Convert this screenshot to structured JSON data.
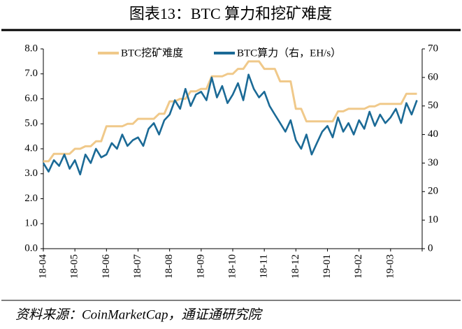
{
  "chart_data": {
    "type": "line",
    "title": "图表13：BTC 算力和挖矿难度",
    "source": "资料来源：CoinMarketCap，通证通研究院",
    "categories": [
      "18-04",
      null,
      null,
      null,
      null,
      null,
      "18-05",
      null,
      null,
      null,
      null,
      null,
      "18-06",
      null,
      null,
      null,
      null,
      null,
      "18-07",
      null,
      null,
      null,
      null,
      null,
      "18-08",
      null,
      null,
      null,
      null,
      null,
      "18-09",
      null,
      null,
      null,
      null,
      null,
      "18-10",
      null,
      null,
      null,
      null,
      null,
      "18-11",
      null,
      null,
      null,
      null,
      null,
      "18-12",
      null,
      null,
      null,
      null,
      null,
      "19-01",
      null,
      null,
      null,
      null,
      null,
      "19-02",
      null,
      null,
      null,
      null,
      null,
      "19-03",
      null,
      null,
      null,
      null,
      null
    ],
    "series": [
      {
        "name": "BTC挖矿难度",
        "color": "#f0c98a",
        "values": [
          3.5,
          3.5,
          3.8,
          3.8,
          3.8,
          3.8,
          4.0,
          4.0,
          4.1,
          4.1,
          4.3,
          4.3,
          4.9,
          4.9,
          4.9,
          4.9,
          5.0,
          5.0,
          5.2,
          5.2,
          5.2,
          5.2,
          5.4,
          5.4,
          5.9,
          5.9,
          6.0,
          6.0,
          6.3,
          6.3,
          6.4,
          6.4,
          6.9,
          6.9,
          6.9,
          7.0,
          7.0,
          7.2,
          7.2,
          7.5,
          7.5,
          7.5,
          7.2,
          7.2,
          7.2,
          6.7,
          6.7,
          6.7,
          5.6,
          5.6,
          5.1,
          5.1,
          5.1,
          5.1,
          5.1,
          5.1,
          5.5,
          5.5,
          5.6,
          5.6,
          5.6,
          5.6,
          5.7,
          5.7,
          5.8,
          5.8,
          5.8,
          5.8,
          5.8,
          6.2,
          6.2,
          6.2
        ]
      },
      {
        "name": "BTC算力（右，EH/s）",
        "color": "#1b6a96",
        "axis": "y2",
        "values": [
          30,
          27,
          31,
          29,
          33,
          28,
          31,
          26,
          33,
          30,
          35,
          32,
          33,
          37,
          35,
          40,
          36,
          38,
          39,
          36,
          42,
          44,
          40,
          45,
          47,
          52,
          49,
          56,
          50,
          54,
          55,
          52,
          60,
          53,
          57,
          51,
          54,
          58,
          52,
          61,
          56,
          53,
          55,
          50,
          47,
          44,
          41,
          45,
          38,
          35,
          40,
          33,
          37,
          41,
          43,
          39,
          46,
          41,
          44,
          40,
          45,
          42,
          48,
          43,
          47,
          44,
          46,
          49,
          44,
          51,
          47,
          52
        ]
      }
    ],
    "ylim": [
      0,
      8
    ],
    "yticks": [
      {
        "value": 0,
        "label": "0.0"
      },
      {
        "value": 1,
        "label": "1.0"
      },
      {
        "value": 2,
        "label": "2.0"
      },
      {
        "value": 3,
        "label": "3.0"
      },
      {
        "value": 4,
        "label": "4.0"
      },
      {
        "value": 5,
        "label": "5.0"
      },
      {
        "value": 6,
        "label": "6.0"
      },
      {
        "value": 7,
        "label": "7.0"
      },
      {
        "value": 8,
        "label": "8.0"
      }
    ],
    "y2lim": [
      0,
      70
    ],
    "y2ticks": [
      0,
      10,
      20,
      30,
      40,
      50,
      60,
      70
    ],
    "legend": "top"
  }
}
